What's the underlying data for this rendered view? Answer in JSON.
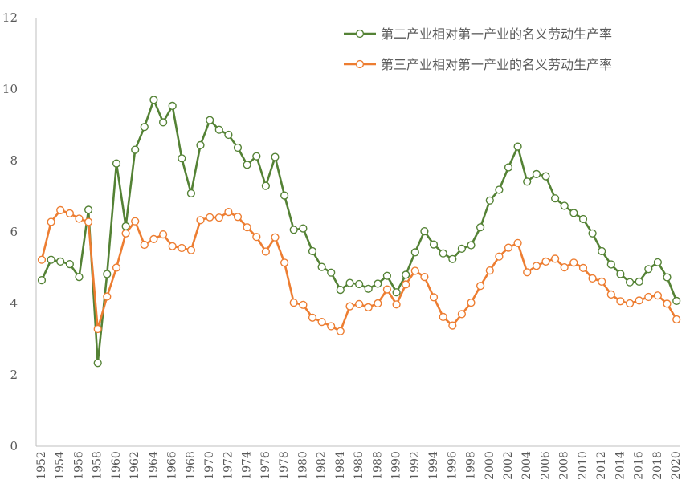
{
  "chart_data": {
    "type": "line",
    "title": "",
    "xlabel": "",
    "ylabel": "",
    "ylim": [
      0,
      12
    ],
    "y_ticks": [
      "0",
      "2",
      "4",
      "6",
      "8",
      "10",
      "12"
    ],
    "x": [
      1952,
      1953,
      1954,
      1955,
      1956,
      1957,
      1958,
      1959,
      1960,
      1961,
      1962,
      1963,
      1964,
      1965,
      1966,
      1967,
      1968,
      1969,
      1970,
      1971,
      1972,
      1973,
      1974,
      1975,
      1976,
      1977,
      1978,
      1979,
      1980,
      1981,
      1982,
      1983,
      1984,
      1985,
      1986,
      1987,
      1988,
      1989,
      1990,
      1991,
      1992,
      1993,
      1994,
      1995,
      1996,
      1997,
      1998,
      1999,
      2000,
      2001,
      2002,
      2003,
      2004,
      2005,
      2006,
      2007,
      2008,
      2009,
      2010,
      2011,
      2012,
      2013,
      2014,
      2015,
      2016,
      2017,
      2018,
      2019,
      2020
    ],
    "x_tick_labels": [
      "1952",
      "1954",
      "1956",
      "1958",
      "1960",
      "1962",
      "1964",
      "1966",
      "1968",
      "1970",
      "1972",
      "1974",
      "1976",
      "1978",
      "1980",
      "1982",
      "1984",
      "1986",
      "1988",
      "1990",
      "1992",
      "1994",
      "1996",
      "1998",
      "2000",
      "2002",
      "2004",
      "2006",
      "2008",
      "2010",
      "2012",
      "2014",
      "2016",
      "2018",
      "2020"
    ],
    "grid": false,
    "legend_position": "top-right",
    "series": [
      {
        "name": "第二产业相对第一产业的名义劳动生产率",
        "color": "#548235",
        "values": [
          4.65,
          5.22,
          5.17,
          5.1,
          4.74,
          6.62,
          2.33,
          4.82,
          7.92,
          6.16,
          8.3,
          8.94,
          9.7,
          9.07,
          9.53,
          8.06,
          7.08,
          8.43,
          9.13,
          8.86,
          8.72,
          8.36,
          7.88,
          8.12,
          7.29,
          8.1,
          7.02,
          6.06,
          6.1,
          5.46,
          5.02,
          4.86,
          4.38,
          4.57,
          4.54,
          4.41,
          4.55,
          4.77,
          4.31,
          4.8,
          5.43,
          6.02,
          5.65,
          5.4,
          5.24,
          5.53,
          5.63,
          6.13,
          6.88,
          7.18,
          7.81,
          8.39,
          7.41,
          7.62,
          7.56,
          6.94,
          6.73,
          6.53,
          6.36,
          5.96,
          5.46,
          5.09,
          4.82,
          4.59,
          4.61,
          4.96,
          5.15,
          4.73,
          4.07
        ]
      },
      {
        "name": "第三产业相对第一产业的名义劳动生产率",
        "color": "#ED7D31",
        "values": [
          5.22,
          6.28,
          6.61,
          6.52,
          6.37,
          6.28,
          3.28,
          4.19,
          5.0,
          5.96,
          6.3,
          5.64,
          5.8,
          5.93,
          5.6,
          5.55,
          5.49,
          6.33,
          6.41,
          6.4,
          6.56,
          6.42,
          6.13,
          5.86,
          5.45,
          5.85,
          5.14,
          4.02,
          3.96,
          3.6,
          3.48,
          3.36,
          3.22,
          3.92,
          3.98,
          3.89,
          4.0,
          4.39,
          3.97,
          4.53,
          4.91,
          4.74,
          4.17,
          3.62,
          3.38,
          3.7,
          4.02,
          4.49,
          4.92,
          5.31,
          5.56,
          5.69,
          4.87,
          5.05,
          5.17,
          5.25,
          5.01,
          5.14,
          4.99,
          4.7,
          4.61,
          4.25,
          4.06,
          4.0,
          4.08,
          4.18,
          4.22,
          3.99,
          3.55
        ]
      }
    ]
  }
}
